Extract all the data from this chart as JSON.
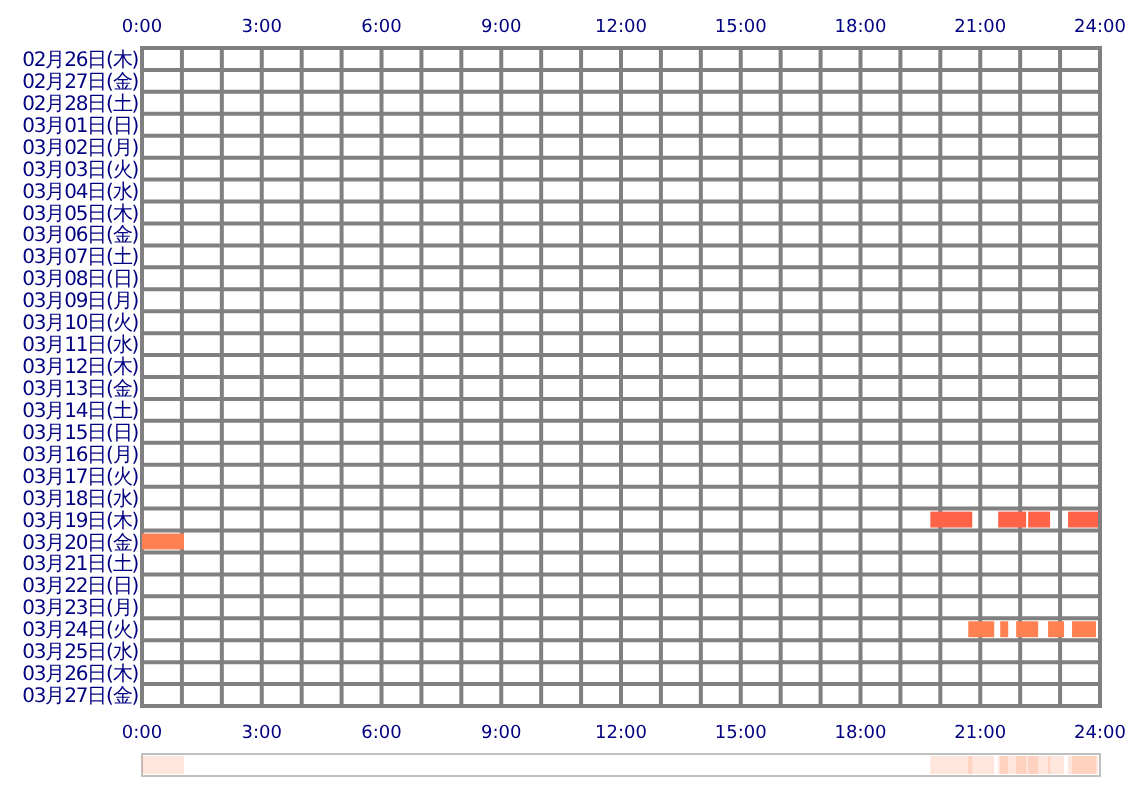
{
  "chart_data": {
    "type": "bar",
    "orientation": "horizontal",
    "grid": true,
    "categories": [
      "02月26日(木)",
      "02月27日(金)",
      "02月28日(土)",
      "03月01日(日)",
      "03月02日(月)",
      "03月03日(火)",
      "03月04日(水)",
      "03月05日(木)",
      "03月06日(金)",
      "03月07日(土)",
      "03月08日(日)",
      "03月09日(月)",
      "03月10日(火)",
      "03月11日(水)",
      "03月12日(木)",
      "03月13日(金)",
      "03月14日(土)",
      "03月15日(日)",
      "03月16日(月)",
      "03月17日(火)",
      "03月18日(水)",
      "03月19日(木)",
      "03月20日(金)",
      "03月21日(土)",
      "03月22日(日)",
      "03月23日(月)",
      "03月24日(火)",
      "03月25日(水)",
      "03月26日(木)",
      "03月27日(金)"
    ],
    "xlim": [
      0,
      24
    ],
    "xticks": [
      {
        "value": 0,
        "label": "0:00"
      },
      {
        "value": 1,
        "label": null
      },
      {
        "value": 2,
        "label": null
      },
      {
        "value": 3,
        "label": "3:00"
      },
      {
        "value": 4,
        "label": null
      },
      {
        "value": 5,
        "label": null
      },
      {
        "value": 6,
        "label": "6:00"
      },
      {
        "value": 7,
        "label": null
      },
      {
        "value": 8,
        "label": null
      },
      {
        "value": 9,
        "label": "9:00"
      },
      {
        "value": 10,
        "label": null
      },
      {
        "value": 11,
        "label": null
      },
      {
        "value": 12,
        "label": "12:00"
      },
      {
        "value": 13,
        "label": null
      },
      {
        "value": 14,
        "label": null
      },
      {
        "value": 15,
        "label": "15:00"
      },
      {
        "value": 16,
        "label": null
      },
      {
        "value": 17,
        "label": null
      },
      {
        "value": 18,
        "label": "18:00"
      },
      {
        "value": 19,
        "label": null
      },
      {
        "value": 20,
        "label": null
      },
      {
        "value": 21,
        "label": "21:00"
      },
      {
        "value": 22,
        "label": null
      },
      {
        "value": 23,
        "label": null
      },
      {
        "value": 24,
        "label": "24:00"
      }
    ],
    "x2lim": [
      0,
      24
    ],
    "x2ticks": [
      {
        "value": 0,
        "label": "0:00"
      },
      {
        "value": 3,
        "label": "3:00"
      },
      {
        "value": 6,
        "label": "6:00"
      },
      {
        "value": 9,
        "label": "9:00"
      },
      {
        "value": 12,
        "label": "12:00"
      },
      {
        "value": 15,
        "label": "15:00"
      },
      {
        "value": 18,
        "label": "18:00"
      },
      {
        "value": 21,
        "label": "21:00"
      },
      {
        "value": 24,
        "label": "24:00"
      }
    ],
    "series": [
      {
        "colors": [
          null,
          null,
          null,
          null,
          null,
          null,
          null,
          null,
          null,
          null,
          null,
          null,
          null,
          null,
          null,
          null,
          null,
          null,
          null,
          null,
          null,
          "#ff6347",
          "#ff8050",
          null,
          null,
          null,
          "#ff8050",
          null,
          null,
          null
        ],
        "base": [
          null,
          null,
          null,
          null,
          null,
          null,
          null,
          null,
          null,
          null,
          null,
          null,
          null,
          null,
          null,
          null,
          null,
          null,
          null,
          null,
          null,
          19.75,
          0,
          null,
          null,
          null,
          20.7,
          null,
          null,
          null
        ],
        "values": [
          null,
          null,
          null,
          null,
          null,
          null,
          null,
          null,
          null,
          null,
          null,
          null,
          null,
          null,
          null,
          null,
          null,
          null,
          null,
          null,
          null,
          1.05,
          1.05,
          null,
          null,
          null,
          0.65,
          null,
          null,
          null
        ]
      },
      {
        "colors": [
          null,
          null,
          null,
          null,
          null,
          null,
          null,
          null,
          null,
          null,
          null,
          null,
          null,
          null,
          null,
          null,
          null,
          null,
          null,
          null,
          null,
          "#ff6347",
          null,
          null,
          null,
          null,
          "#ff8050",
          null,
          null,
          null
        ],
        "base": [
          null,
          null,
          null,
          null,
          null,
          null,
          null,
          null,
          null,
          null,
          null,
          null,
          null,
          null,
          null,
          null,
          null,
          null,
          null,
          null,
          null,
          21.45,
          null,
          null,
          null,
          null,
          21.5,
          null,
          null,
          null
        ],
        "values": [
          null,
          null,
          null,
          null,
          null,
          null,
          null,
          null,
          null,
          null,
          null,
          null,
          null,
          null,
          null,
          null,
          null,
          null,
          null,
          null,
          null,
          0.7,
          null,
          null,
          null,
          null,
          0.2,
          null,
          null,
          null
        ]
      },
      {
        "colors": [
          null,
          null,
          null,
          null,
          null,
          null,
          null,
          null,
          null,
          null,
          null,
          null,
          null,
          null,
          null,
          null,
          null,
          null,
          null,
          null,
          null,
          "#ff6347",
          null,
          null,
          null,
          null,
          "#ff8050",
          null,
          null,
          null
        ],
        "base": [
          null,
          null,
          null,
          null,
          null,
          null,
          null,
          null,
          null,
          null,
          null,
          null,
          null,
          null,
          null,
          null,
          null,
          null,
          null,
          null,
          null,
          22.2,
          null,
          null,
          null,
          null,
          21.9,
          null,
          null,
          null
        ],
        "values": [
          null,
          null,
          null,
          null,
          null,
          null,
          null,
          null,
          null,
          null,
          null,
          null,
          null,
          null,
          null,
          null,
          null,
          null,
          null,
          null,
          null,
          0.55,
          null,
          null,
          null,
          null,
          0.55,
          null,
          null,
          null
        ]
      },
      {
        "colors": [
          null,
          null,
          null,
          null,
          null,
          null,
          null,
          null,
          null,
          null,
          null,
          null,
          null,
          null,
          null,
          null,
          null,
          null,
          null,
          null,
          null,
          "#ff6347",
          null,
          null,
          null,
          null,
          "#ff8050",
          null,
          null,
          null
        ],
        "base": [
          null,
          null,
          null,
          null,
          null,
          null,
          null,
          null,
          null,
          null,
          null,
          null,
          null,
          null,
          null,
          null,
          null,
          null,
          null,
          null,
          null,
          23.2,
          null,
          null,
          null,
          null,
          22.7,
          null,
          null,
          null
        ],
        "values": [
          null,
          null,
          null,
          null,
          null,
          null,
          null,
          null,
          null,
          null,
          null,
          null,
          null,
          null,
          null,
          null,
          null,
          null,
          null,
          null,
          null,
          0.75,
          null,
          null,
          null,
          null,
          0.4,
          null,
          null,
          null
        ]
      },
      {
        "color": "#ff8050",
        "base": [
          null,
          null,
          null,
          null,
          null,
          null,
          null,
          null,
          null,
          null,
          null,
          null,
          null,
          null,
          null,
          null,
          null,
          null,
          null,
          null,
          null,
          null,
          null,
          null,
          null,
          null,
          23.3,
          null,
          null,
          null
        ],
        "values": [
          null,
          null,
          null,
          null,
          null,
          null,
          null,
          null,
          null,
          null,
          null,
          null,
          null,
          null,
          null,
          null,
          null,
          null,
          null,
          null,
          null,
          null,
          null,
          null,
          null,
          null,
          0.6,
          null,
          null,
          null
        ]
      }
    ]
  }
}
